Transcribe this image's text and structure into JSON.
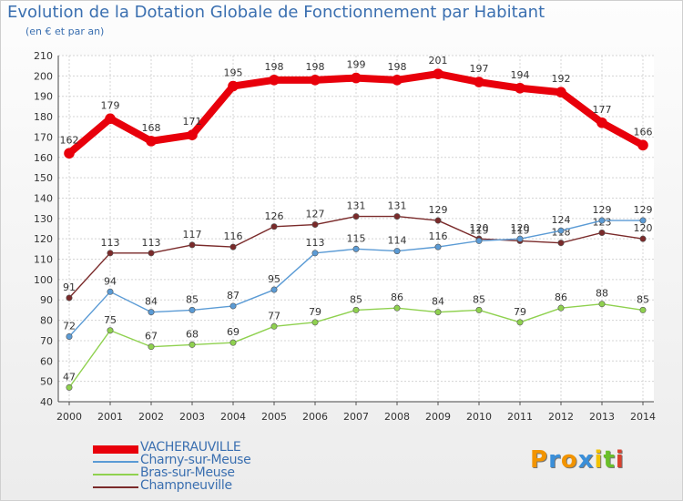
{
  "title": "Evolution de la Dotation Globale de Fonctionnement par Habitant",
  "subtitle": "(en € et par an)",
  "logo": {
    "chars": [
      "P",
      "r",
      "o",
      "x",
      "i",
      "t",
      "i"
    ],
    "colors": [
      "#f29400",
      "#3a8fd9",
      "#f29400",
      "#3a8fd9",
      "#f2c200",
      "#6abf2a",
      "#d9412e"
    ]
  },
  "chart_data": {
    "type": "line",
    "title": "Evolution de la Dotation Globale de Fonctionnement par Habitant",
    "subtitle": "(en € et par an)",
    "x": [
      "2000",
      "2001",
      "2002",
      "2003",
      "2004",
      "2005",
      "2006",
      "2007",
      "2008",
      "2009",
      "2010",
      "2011",
      "2012",
      "2013",
      "2014"
    ],
    "ylim": [
      40,
      210
    ],
    "yticks": [
      40,
      50,
      60,
      70,
      80,
      90,
      100,
      110,
      120,
      130,
      140,
      150,
      160,
      170,
      180,
      190,
      200,
      210
    ],
    "grid": true,
    "legend_position": "bottom-left",
    "series": [
      {
        "name": "VACHERAUVILLE",
        "color": "#e8000b",
        "values": [
          162,
          179,
          168,
          171,
          195,
          198,
          198,
          199,
          198,
          201,
          197,
          194,
          192,
          177,
          166
        ]
      },
      {
        "name": "Charny-sur-Meuse",
        "color": "#5b9bd5",
        "values": [
          72,
          94,
          84,
          85,
          87,
          95,
          113,
          115,
          114,
          116,
          119,
          120,
          124,
          129,
          129
        ]
      },
      {
        "name": "Bras-sur-Meuse",
        "color": "#8fd14f",
        "values": [
          47,
          75,
          67,
          68,
          69,
          77,
          79,
          85,
          86,
          84,
          85,
          79,
          86,
          88,
          85
        ]
      },
      {
        "name": "Champneuville",
        "color": "#7a2a2a",
        "values": [
          91,
          113,
          113,
          117,
          116,
          126,
          127,
          131,
          131,
          129,
          120,
          119,
          118,
          123,
          120
        ]
      }
    ]
  }
}
